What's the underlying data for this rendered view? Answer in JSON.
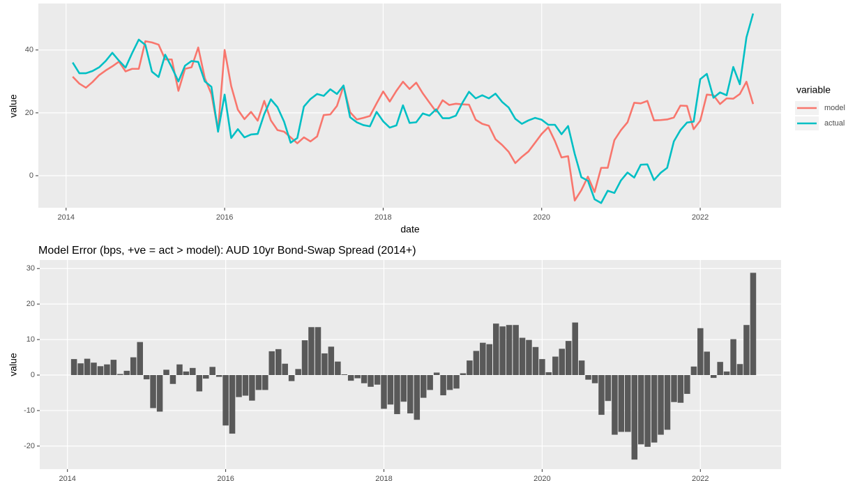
{
  "chart_data": [
    {
      "type": "line",
      "xlabel": "date",
      "ylabel": "value",
      "legend_title": "variable",
      "xlim": [
        2013.65,
        2023.02
      ],
      "xticks": [
        2014,
        2016,
        2018,
        2020,
        2022
      ],
      "ylim": [
        -10.2,
        54.8
      ],
      "yticks": [
        0,
        20,
        40
      ],
      "grid": true,
      "x": [
        2014.083,
        2014.167,
        2014.25,
        2014.333,
        2014.417,
        2014.5,
        2014.583,
        2014.667,
        2014.75,
        2014.833,
        2014.917,
        2015,
        2015.083,
        2015.167,
        2015.25,
        2015.333,
        2015.417,
        2015.5,
        2015.583,
        2015.667,
        2015.75,
        2015.833,
        2015.917,
        2016,
        2016.083,
        2016.167,
        2016.25,
        2016.333,
        2016.417,
        2016.5,
        2016.583,
        2016.667,
        2016.75,
        2016.833,
        2016.917,
        2017,
        2017.083,
        2017.167,
        2017.25,
        2017.333,
        2017.417,
        2017.5,
        2017.583,
        2017.667,
        2017.75,
        2017.833,
        2017.917,
        2018,
        2018.083,
        2018.167,
        2018.25,
        2018.333,
        2018.417,
        2018.5,
        2018.583,
        2018.667,
        2018.75,
        2018.833,
        2018.917,
        2019,
        2019.083,
        2019.167,
        2019.25,
        2019.333,
        2019.417,
        2019.5,
        2019.583,
        2019.667,
        2019.75,
        2019.833,
        2019.917,
        2020,
        2020.083,
        2020.167,
        2020.25,
        2020.333,
        2020.417,
        2020.5,
        2020.583,
        2020.667,
        2020.75,
        2020.833,
        2020.917,
        2021,
        2021.083,
        2021.167,
        2021.25,
        2021.333,
        2021.417,
        2021.5,
        2021.583,
        2021.667,
        2021.75,
        2021.833,
        2021.917,
        2022,
        2022.083,
        2022.167,
        2022.25,
        2022.333,
        2022.417,
        2022.5,
        2022.583,
        2022.667
      ],
      "series": [
        {
          "name": "model",
          "color": "#F8766D",
          "values": [
            31.5,
            29.3,
            28.0,
            29.8,
            32.0,
            33.5,
            34.8,
            36.3,
            33.2,
            34.0,
            34.0,
            42.8,
            42.4,
            41.7,
            37.0,
            37.0,
            27.0,
            34.0,
            34.5,
            40.8,
            31.0,
            26.0,
            14.5,
            40.0,
            28.5,
            21.0,
            18.0,
            20.3,
            17.5,
            23.8,
            17.6,
            14.5,
            14.0,
            12.2,
            10.3,
            12.2,
            10.9,
            12.5,
            19.3,
            19.5,
            22.2,
            28.5,
            20.2,
            17.9,
            18.4,
            19.0,
            23.0,
            26.8,
            23.6,
            27.0,
            29.9,
            27.6,
            29.6,
            26.2,
            23.3,
            20.4,
            24.0,
            22.5,
            22.9,
            22.7,
            22.6,
            17.8,
            16.5,
            15.9,
            11.6,
            9.8,
            7.6,
            4.0,
            6.0,
            7.7,
            10.5,
            13.3,
            15.4,
            11.0,
            5.8,
            6.2,
            -7.9,
            -4.6,
            -0.3,
            -5.2,
            2.5,
            2.5,
            11.3,
            14.5,
            17.0,
            23.2,
            23.0,
            23.8,
            17.6,
            17.7,
            17.9,
            18.5,
            22.3,
            22.2,
            14.8,
            17.5,
            25.8,
            25.6,
            22.8,
            24.6,
            24.5,
            26.0,
            29.9,
            22.8
          ]
        },
        {
          "name": "actual",
          "color": "#00BFC4",
          "values": [
            36.0,
            32.6,
            32.6,
            33.3,
            34.5,
            36.5,
            39.1,
            36.6,
            34.4,
            39.0,
            43.3,
            41.6,
            33.1,
            31.4,
            38.5,
            34.5,
            30.0,
            35.0,
            36.5,
            36.2,
            30.0,
            28.3,
            14.0,
            25.8,
            12.0,
            14.8,
            12.2,
            13.1,
            13.3,
            19.6,
            24.3,
            21.8,
            17.2,
            10.5,
            12.0,
            22.0,
            24.4,
            26.0,
            25.4,
            27.5,
            26.0,
            28.7,
            18.6,
            17.0,
            16.1,
            15.7,
            20.3,
            17.3,
            15.3,
            16.0,
            22.4,
            16.8,
            17.0,
            19.8,
            19.1,
            21.1,
            18.3,
            18.3,
            19.1,
            23.2,
            26.7,
            24.6,
            25.6,
            24.6,
            26.1,
            23.5,
            21.7,
            18.1,
            16.5,
            17.6,
            18.4,
            17.8,
            16.2,
            16.2,
            13.2,
            15.8,
            6.9,
            -0.5,
            -1.6,
            -7.5,
            -8.7,
            -4.8,
            -5.5,
            -1.5,
            1.0,
            -0.6,
            3.5,
            3.6,
            -1.4,
            0.9,
            2.5,
            10.9,
            14.5,
            16.9,
            17.2,
            30.7,
            32.4,
            24.8,
            26.5,
            25.6,
            34.6,
            29.1,
            44.0,
            51.6
          ]
        }
      ]
    },
    {
      "type": "bar",
      "title": "Model Error (bps, +ve = act > model): AUD 10yr Bond-Swap Spread (2014+)",
      "ylabel": "value",
      "color": "#595959",
      "xlim": [
        2013.65,
        2023.02
      ],
      "xticks": [
        2014,
        2016,
        2018,
        2020,
        2022
      ],
      "ylim": [
        -26.5,
        32.4
      ],
      "yticks": [
        -20,
        -10,
        0,
        10,
        20,
        30
      ],
      "grid": true,
      "x": [
        2014.083,
        2014.167,
        2014.25,
        2014.333,
        2014.417,
        2014.5,
        2014.583,
        2014.667,
        2014.75,
        2014.833,
        2014.917,
        2015,
        2015.083,
        2015.167,
        2015.25,
        2015.333,
        2015.417,
        2015.5,
        2015.583,
        2015.667,
        2015.75,
        2015.833,
        2015.917,
        2016,
        2016.083,
        2016.167,
        2016.25,
        2016.333,
        2016.417,
        2016.5,
        2016.583,
        2016.667,
        2016.75,
        2016.833,
        2016.917,
        2017,
        2017.083,
        2017.167,
        2017.25,
        2017.333,
        2017.417,
        2017.5,
        2017.583,
        2017.667,
        2017.75,
        2017.833,
        2017.917,
        2018,
        2018.083,
        2018.167,
        2018.25,
        2018.333,
        2018.417,
        2018.5,
        2018.583,
        2018.667,
        2018.75,
        2018.833,
        2018.917,
        2019,
        2019.083,
        2019.167,
        2019.25,
        2019.333,
        2019.417,
        2019.5,
        2019.583,
        2019.667,
        2019.75,
        2019.833,
        2019.917,
        2020,
        2020.083,
        2020.167,
        2020.25,
        2020.333,
        2020.417,
        2020.5,
        2020.583,
        2020.667,
        2020.75,
        2020.833,
        2020.917,
        2021,
        2021.083,
        2021.167,
        2021.25,
        2021.333,
        2021.417,
        2021.5,
        2021.583,
        2021.667,
        2021.75,
        2021.833,
        2021.917,
        2022,
        2022.083,
        2022.167,
        2022.25,
        2022.333,
        2022.417,
        2022.5,
        2022.583,
        2022.667
      ],
      "values": [
        4.5,
        3.3,
        4.6,
        3.5,
        2.5,
        3.0,
        4.3,
        0.3,
        1.2,
        5.0,
        9.3,
        -1.2,
        -9.3,
        -10.3,
        1.5,
        -2.5,
        3.0,
        1.0,
        2.0,
        -4.6,
        -1.0,
        2.3,
        -0.5,
        -14.2,
        -16.5,
        -6.2,
        -5.8,
        -7.2,
        -4.2,
        -4.2,
        6.7,
        7.3,
        3.2,
        -1.7,
        1.7,
        9.8,
        13.5,
        13.5,
        6.1,
        8.0,
        3.8,
        0.2,
        -1.6,
        -0.9,
        -2.3,
        -3.3,
        -2.7,
        -9.5,
        -8.3,
        -11.0,
        -7.5,
        -10.8,
        -12.6,
        -6.4,
        -4.2,
        0.7,
        -5.7,
        -4.2,
        -3.8,
        0.5,
        4.1,
        6.8,
        9.1,
        8.7,
        14.5,
        13.7,
        14.1,
        14.1,
        10.5,
        9.9,
        7.9,
        4.5,
        0.8,
        5.2,
        7.4,
        9.6,
        14.8,
        4.1,
        -1.3,
        -2.3,
        -11.2,
        -7.3,
        -16.8,
        -16.0,
        -16.0,
        -23.8,
        -19.5,
        -20.2,
        -19.0,
        -16.8,
        -15.4,
        -7.6,
        -7.8,
        -5.3,
        2.4,
        13.2,
        6.6,
        -0.8,
        3.7,
        1.0,
        10.1,
        3.1,
        14.1,
        28.8
      ]
    }
  ]
}
